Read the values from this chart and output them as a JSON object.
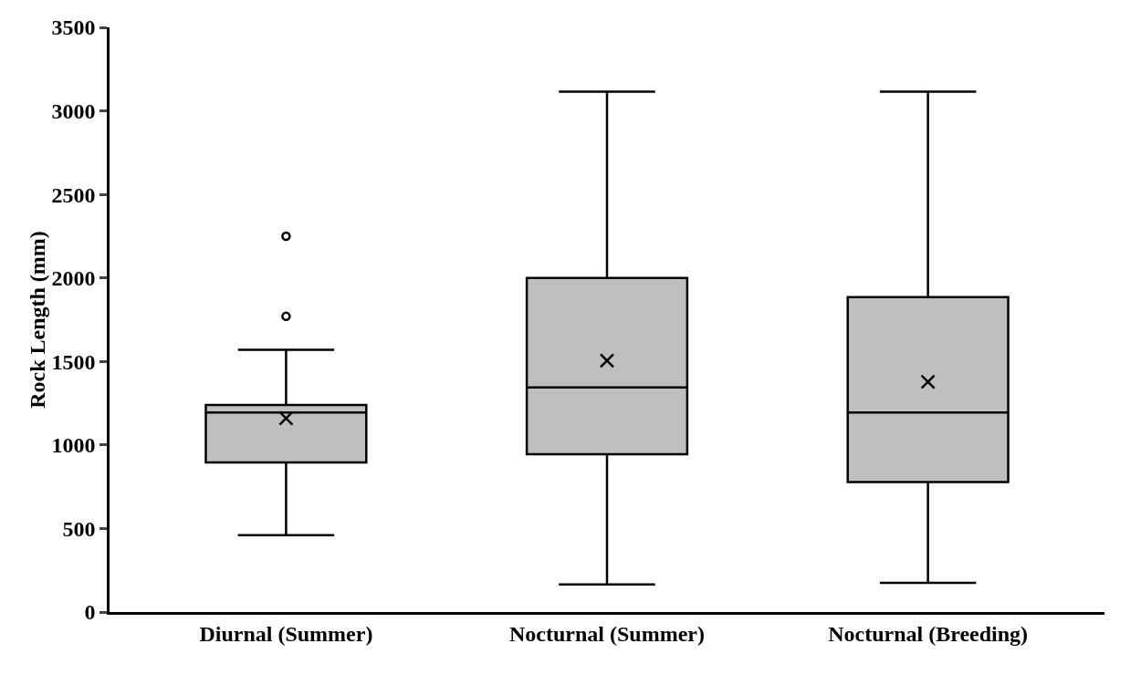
{
  "chart_data": {
    "type": "box",
    "ylabel": "Rock Length (mm)",
    "categories": [
      "Diurnal (Summer)",
      "Nocturnal (Summer)",
      "Nocturnal (Breeding)"
    ],
    "boxes": [
      {
        "low": 460,
        "q1": 895,
        "median": 1195,
        "q3": 1240,
        "high": 1570,
        "mean": 1160,
        "outliers": [
          1770,
          2250
        ]
      },
      {
        "low": 165,
        "q1": 945,
        "median": 1345,
        "q3": 2000,
        "high": 3115,
        "mean": 1505
      },
      {
        "low": 175,
        "q1": 778,
        "median": 1195,
        "q3": 1885,
        "high": 3115,
        "mean": 1378
      }
    ],
    "color": "#bfbfbf",
    "ylim": [
      0,
      3500
    ],
    "yticks": [
      0,
      500,
      1000,
      1500,
      2000,
      2500,
      3000,
      3500
    ],
    "grid": false
  }
}
